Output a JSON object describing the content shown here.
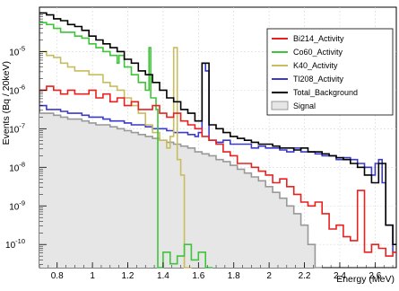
{
  "chart_data": {
    "type": "line",
    "title": "",
    "xlabel": "Energy (MeV)",
    "ylabel": "Events (Bq / 20keV)",
    "xlim": [
      0.7,
      2.72
    ],
    "ylim_log10": [
      -10.6,
      -3.85
    ],
    "yscale": "log",
    "grid": true,
    "legend_position": "top-right",
    "x_ticks": [
      {
        "value": 0.8,
        "label": "0.8"
      },
      {
        "value": 1.0,
        "label": "1"
      },
      {
        "value": 1.2,
        "label": "1.2"
      },
      {
        "value": 1.4,
        "label": "1.4"
      },
      {
        "value": 1.6,
        "label": "1.6"
      },
      {
        "value": 1.8,
        "label": "1.8"
      },
      {
        "value": 2.0,
        "label": "2"
      },
      {
        "value": 2.2,
        "label": "2.2"
      },
      {
        "value": 2.4,
        "label": "2.4"
      },
      {
        "value": 2.6,
        "label": "2.6"
      }
    ],
    "y_ticks": [
      {
        "exp": -5,
        "label": "10",
        "sup": "-5"
      },
      {
        "exp": -6,
        "label": "10",
        "sup": "-6"
      },
      {
        "exp": -7,
        "label": "10",
        "sup": "-7"
      },
      {
        "exp": -8,
        "label": "10",
        "sup": "-8"
      },
      {
        "exp": -9,
        "label": "10",
        "sup": "-9"
      },
      {
        "exp": -10,
        "label": "10",
        "sup": "-10"
      }
    ],
    "series": [
      {
        "name": "Bi214_Activity",
        "color": "#e8201e",
        "x": [
          0.7,
          0.74,
          0.78,
          0.82,
          0.86,
          0.9,
          0.94,
          0.98,
          1.02,
          1.06,
          1.1,
          1.14,
          1.18,
          1.22,
          1.26,
          1.3,
          1.34,
          1.38,
          1.42,
          1.46,
          1.5,
          1.54,
          1.58,
          1.62,
          1.66,
          1.7,
          1.74,
          1.78,
          1.82,
          1.86,
          1.9,
          1.94,
          1.98,
          2.02,
          2.06,
          2.1,
          2.14,
          2.18,
          2.22,
          2.26,
          2.3,
          2.34,
          2.38,
          2.42,
          2.46,
          2.5,
          2.54,
          2.58,
          2.62,
          2.66,
          2.7
        ],
        "log10": [
          -6.0,
          -5.9,
          -6.0,
          -6.1,
          -6.0,
          -6.1,
          -6.1,
          -6.0,
          -6.2,
          -6.1,
          -6.3,
          -6.2,
          -6.4,
          -6.3,
          -6.5,
          -6.5,
          -6.4,
          -6.6,
          -6.7,
          -6.6,
          -6.8,
          -6.9,
          -7.0,
          -7.2,
          -7.3,
          -7.4,
          -7.6,
          -7.7,
          -7.9,
          -7.9,
          -8.0,
          -8.1,
          -8.2,
          -8.4,
          -8.3,
          -8.5,
          -8.7,
          -8.9,
          -9.0,
          -8.9,
          -9.2,
          -9.6,
          -9.5,
          -9.8,
          -9.9,
          -8.6,
          -10.2,
          -10.0,
          -10.1,
          -10.3,
          -10.2
        ]
      },
      {
        "name": "Co60_Activity",
        "color": "#3fc43a",
        "x": [
          0.7,
          0.74,
          0.78,
          0.82,
          0.86,
          0.9,
          0.94,
          0.98,
          1.02,
          1.06,
          1.1,
          1.14,
          1.15,
          1.18,
          1.22,
          1.26,
          1.3,
          1.32,
          1.33,
          1.36,
          1.37,
          1.4,
          1.44,
          1.48,
          1.52,
          1.56,
          1.6,
          1.64
        ],
        "log10": [
          -4.25,
          -4.3,
          -4.4,
          -4.5,
          -4.5,
          -4.6,
          -4.65,
          -4.8,
          -4.9,
          -5.0,
          -5.1,
          -5.3,
          -5.1,
          -5.4,
          -5.6,
          -5.8,
          -6.0,
          -4.9,
          -6.2,
          -6.5,
          -11.0,
          -10.2,
          -10.5,
          -10.3,
          -10.0,
          -10.4,
          -10.2,
          -10.6
        ]
      },
      {
        "name": "K40_Activity",
        "color": "#c8bd5e",
        "x": [
          0.7,
          0.74,
          0.78,
          0.82,
          0.86,
          0.9,
          0.94,
          0.98,
          1.02,
          1.06,
          1.1,
          1.14,
          1.18,
          1.22,
          1.26,
          1.3,
          1.34,
          1.38,
          1.42,
          1.44,
          1.46,
          1.48,
          1.5,
          1.52
        ],
        "log10": [
          -5.0,
          -5.1,
          -5.15,
          -5.3,
          -5.4,
          -5.5,
          -5.5,
          -5.6,
          -5.6,
          -5.8,
          -5.9,
          -6.0,
          -6.2,
          -6.4,
          -6.6,
          -6.9,
          -7.1,
          -7.3,
          -7.5,
          -7.2,
          -4.9,
          -7.8,
          -8.2,
          -11.0
        ]
      },
      {
        "name": "Tl208_Activity",
        "color": "#3a3acc",
        "x": [
          0.7,
          0.74,
          0.78,
          0.82,
          0.86,
          0.9,
          0.94,
          0.98,
          1.02,
          1.06,
          1.1,
          1.14,
          1.18,
          1.22,
          1.26,
          1.3,
          1.34,
          1.38,
          1.42,
          1.46,
          1.5,
          1.54,
          1.58,
          1.6,
          1.62,
          1.64,
          1.66,
          1.7,
          1.74,
          1.78,
          1.82,
          1.86,
          1.9,
          1.94,
          1.98,
          2.02,
          2.06,
          2.1,
          2.14,
          2.18,
          2.22,
          2.26,
          2.3,
          2.34,
          2.38,
          2.42,
          2.46,
          2.5,
          2.54,
          2.58,
          2.6,
          2.62,
          2.64,
          2.66,
          2.7
        ],
        "log10": [
          -6.4,
          -6.5,
          -6.5,
          -6.55,
          -6.6,
          -6.6,
          -6.65,
          -6.7,
          -6.7,
          -6.75,
          -6.8,
          -6.8,
          -6.85,
          -6.9,
          -6.9,
          -6.95,
          -7.0,
          -7.0,
          -7.05,
          -7.1,
          -7.1,
          -7.15,
          -7.2,
          -7.1,
          -5.3,
          -5.5,
          -7.3,
          -7.35,
          -7.3,
          -7.4,
          -7.4,
          -7.4,
          -7.5,
          -7.45,
          -7.5,
          -7.5,
          -7.55,
          -7.6,
          -7.5,
          -7.6,
          -7.6,
          -7.65,
          -7.7,
          -7.7,
          -7.8,
          -7.75,
          -7.8,
          -7.9,
          -8.0,
          -8.2,
          -7.9,
          -7.8,
          -8.4,
          -9.5,
          -10.2
        ]
      },
      {
        "name": "Total_Background",
        "color": "#000000",
        "x": [
          0.7,
          0.74,
          0.78,
          0.82,
          0.86,
          0.9,
          0.94,
          0.98,
          1.02,
          1.06,
          1.1,
          1.14,
          1.18,
          1.22,
          1.26,
          1.3,
          1.34,
          1.38,
          1.42,
          1.46,
          1.5,
          1.54,
          1.58,
          1.62,
          1.66,
          1.7,
          1.74,
          1.78,
          1.82,
          1.86,
          1.9,
          1.94,
          1.98,
          2.02,
          2.06,
          2.1,
          2.14,
          2.18,
          2.22,
          2.26,
          2.3,
          2.34,
          2.38,
          2.42,
          2.46,
          2.5,
          2.54,
          2.58,
          2.62,
          2.66,
          2.7
        ],
        "log10": [
          -4.0,
          -4.05,
          -4.15,
          -4.2,
          -4.3,
          -4.35,
          -4.45,
          -4.6,
          -4.7,
          -4.8,
          -4.9,
          -5.0,
          -5.2,
          -5.3,
          -5.5,
          -5.6,
          -5.8,
          -6.0,
          -6.2,
          -6.3,
          -6.5,
          -6.6,
          -6.8,
          -5.3,
          -6.9,
          -7.0,
          -7.1,
          -7.2,
          -7.25,
          -7.3,
          -7.35,
          -7.4,
          -7.4,
          -7.45,
          -7.5,
          -7.5,
          -7.55,
          -7.5,
          -7.6,
          -7.6,
          -7.65,
          -7.7,
          -7.75,
          -7.8,
          -7.9,
          -8.0,
          -8.2,
          -8.4,
          -7.9,
          -9.5,
          -10.0
        ]
      },
      {
        "name": "Signal",
        "color": "#999999",
        "fill": "#e6e6e6",
        "x": [
          0.7,
          0.74,
          0.78,
          0.82,
          0.86,
          0.9,
          0.94,
          0.98,
          1.02,
          1.06,
          1.1,
          1.14,
          1.18,
          1.22,
          1.26,
          1.3,
          1.34,
          1.38,
          1.42,
          1.46,
          1.5,
          1.54,
          1.58,
          1.62,
          1.66,
          1.7,
          1.74,
          1.78,
          1.82,
          1.86,
          1.9,
          1.94,
          1.98,
          2.02,
          2.06,
          2.1,
          2.14,
          2.18,
          2.22,
          2.26
        ],
        "log10": [
          -6.6,
          -6.6,
          -6.65,
          -6.7,
          -6.75,
          -6.75,
          -6.8,
          -6.85,
          -6.9,
          -6.9,
          -6.95,
          -7.0,
          -7.05,
          -7.1,
          -7.15,
          -7.2,
          -7.25,
          -7.3,
          -7.35,
          -7.4,
          -7.45,
          -7.5,
          -7.6,
          -7.65,
          -7.7,
          -7.8,
          -7.85,
          -7.95,
          -8.05,
          -8.15,
          -8.25,
          -8.35,
          -8.5,
          -8.65,
          -8.8,
          -9.0,
          -9.2,
          -9.5,
          -10.0,
          -10.6
        ]
      }
    ]
  }
}
